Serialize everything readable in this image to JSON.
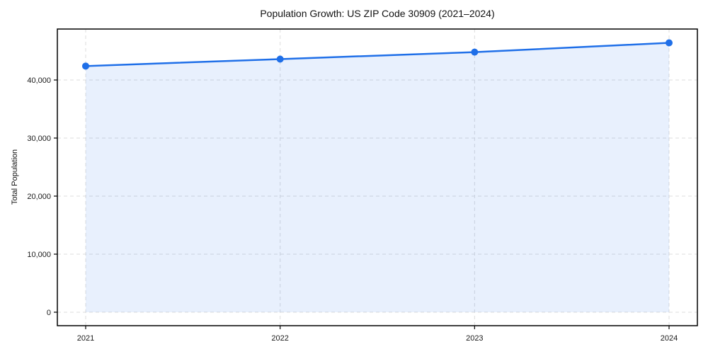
{
  "chart_data": {
    "type": "line",
    "title": "Population Growth: US ZIP Code 30909 (2021–2024)",
    "xlabel": "",
    "ylabel": "Total Population",
    "categories": [
      "2021",
      "2022",
      "2023",
      "2024"
    ],
    "series": [
      {
        "name": "Total Population",
        "values": [
          42400,
          43600,
          44800,
          46400
        ]
      }
    ],
    "y_ticks": [
      0,
      10000,
      20000,
      30000,
      40000
    ],
    "y_tick_labels": [
      "0",
      "10,000",
      "20,000",
      "30,000",
      "40,000"
    ],
    "ylim": [
      -2320,
      48780
    ],
    "grid": true,
    "grid_style": "dashed",
    "legend": false,
    "marker": "circle",
    "area_fill": true,
    "fill_opacity": 0.1,
    "colors": {
      "line": "#1f6fe8",
      "grid": "#dcdcdc",
      "axis": "#000000",
      "text": "#1a1a1a",
      "background": "#ffffff"
    }
  }
}
